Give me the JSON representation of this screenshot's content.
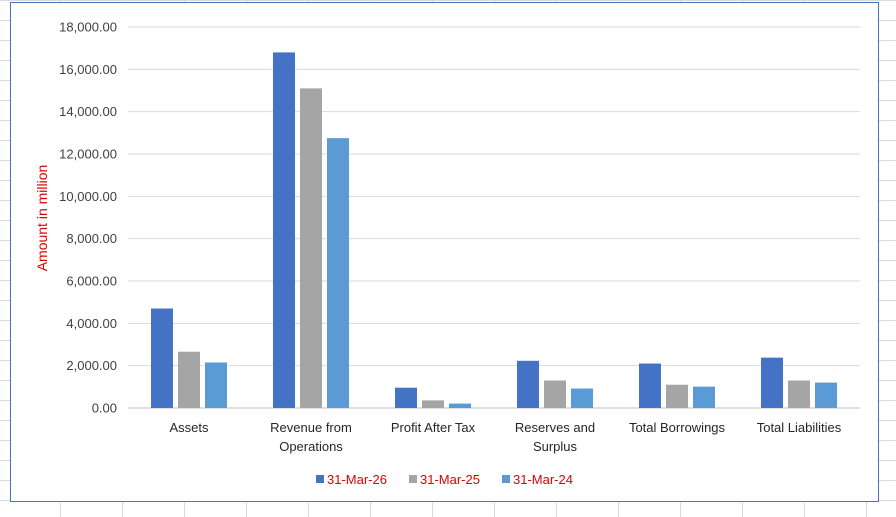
{
  "chart_data": {
    "type": "bar",
    "title": "",
    "xlabel": "",
    "ylabel": "Amount in million",
    "ylim": [
      0,
      18000
    ],
    "yticks": [
      "0.00",
      "2,000.00",
      "4,000.00",
      "6,000.00",
      "8,000.00",
      "10,000.00",
      "12,000.00",
      "14,000.00",
      "16,000.00",
      "18,000.00"
    ],
    "grid": true,
    "legend_position": "bottom",
    "categories": [
      [
        "Assets"
      ],
      [
        "Revenue from",
        "Operations"
      ],
      [
        "Profit After Tax"
      ],
      [
        "Reserves and",
        "Surplus"
      ],
      [
        "Total Borrowings"
      ],
      [
        "Total Liabilities"
      ]
    ],
    "series": [
      {
        "name": "31-Mar-26",
        "color": "#4472c4",
        "values": [
          4700,
          16800,
          960,
          2230,
          2100,
          2380
        ]
      },
      {
        "name": "31-Mar-25",
        "color": "#a5a5a5",
        "values": [
          2660,
          15100,
          360,
          1300,
          1100,
          1300
        ]
      },
      {
        "name": "31-Mar-24",
        "color": "#5b9bd5",
        "values": [
          2150,
          12750,
          210,
          920,
          1010,
          1200
        ]
      }
    ]
  }
}
